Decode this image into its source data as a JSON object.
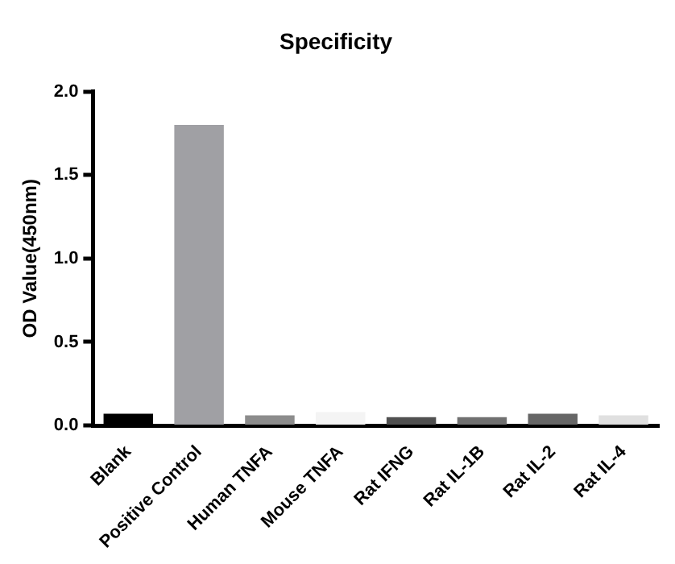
{
  "chart_data": {
    "type": "bar",
    "title": "Specificity",
    "ylabel": "OD Value(450nm)",
    "categories": [
      "Blank",
      "Positive Control",
      "Human TNFA",
      "Mouse TNFA",
      "Rat IFNG",
      "Rat IL-1B",
      "Rat IL-2",
      "Rat IL-4"
    ],
    "values": [
      0.07,
      1.8,
      0.06,
      0.08,
      0.05,
      0.05,
      0.07,
      0.06
    ],
    "colors": [
      "#000000",
      "#a0a0a4",
      "#8c8c8c",
      "#f4f4f4",
      "#505050",
      "#707070",
      "#666666",
      "#e0e0e0"
    ],
    "ylim": [
      0,
      2
    ],
    "yticks": [
      {
        "value": 0,
        "label": "0.0"
      },
      {
        "value": 0.5,
        "label": "0.5"
      },
      {
        "value": 1,
        "label": "1.0"
      },
      {
        "value": 1.5,
        "label": "1.5"
      },
      {
        "value": 2,
        "label": "2.0"
      }
    ],
    "grid": false,
    "legend": false
  }
}
